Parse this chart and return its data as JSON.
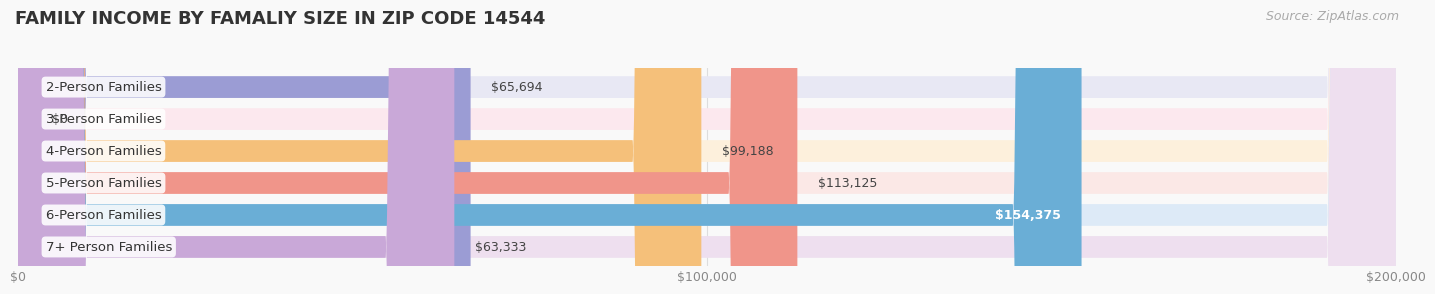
{
  "title": "FAMILY INCOME BY FAMALIY SIZE IN ZIP CODE 14544",
  "source": "Source: ZipAtlas.com",
  "categories": [
    "2-Person Families",
    "3-Person Families",
    "4-Person Families",
    "5-Person Families",
    "6-Person Families",
    "7+ Person Families"
  ],
  "values": [
    65694,
    0,
    99188,
    113125,
    154375,
    63333
  ],
  "bar_colors": [
    "#9b9cd4",
    "#f4a0b5",
    "#f5c07a",
    "#f0958a",
    "#6aaed6",
    "#c9a8d8"
  ],
  "bar_bg_colors": [
    "#e8e8f4",
    "#fce8ee",
    "#fdf0dc",
    "#fbe8e6",
    "#ddeaf7",
    "#eedfef"
  ],
  "value_labels": [
    "$65,694",
    "$0",
    "$99,188",
    "$113,125",
    "$154,375",
    "$63,333"
  ],
  "value_label_colors": [
    "#555555",
    "#555555",
    "#555555",
    "#555555",
    "#ffffff",
    "#555555"
  ],
  "xlim": [
    0,
    200000
  ],
  "xticks": [
    0,
    100000,
    200000
  ],
  "xtick_labels": [
    "$0",
    "$100,000",
    "$200,000"
  ],
  "bg_color": "#f9f9f9",
  "title_fontsize": 13,
  "label_fontsize": 9.5,
  "value_fontsize": 9,
  "source_fontsize": 9
}
